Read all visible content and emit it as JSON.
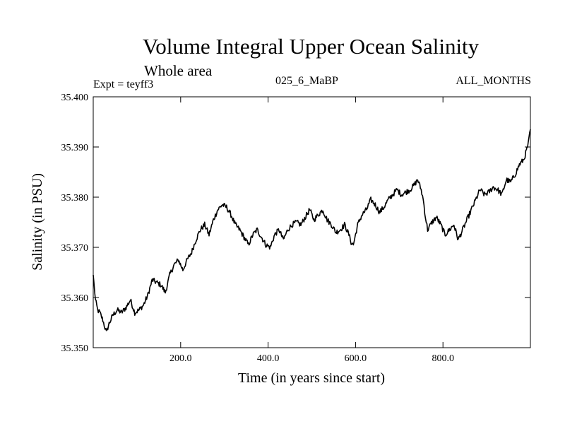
{
  "header": {
    "title": "Volume Integral Upper Ocean Salinity",
    "subtitle": "Whole area",
    "expt": "Expt = teyff3",
    "run": "025_6_MaBP",
    "months": "ALL_MONTHS"
  },
  "colors": {
    "line": "#000000",
    "background": "#ffffff"
  },
  "chart_data": {
    "type": "line",
    "title": "Volume Integral Upper Ocean Salinity",
    "xlabel": "Time (in years since start)",
    "ylabel": "Salinity (in PSU)",
    "xlim": [
      0,
      1000
    ],
    "ylim": [
      35.35,
      35.4
    ],
    "xticks": [
      200,
      400,
      600,
      800
    ],
    "xtick_labels": [
      "200.0",
      "400.0",
      "600.0",
      "800.0"
    ],
    "yticks": [
      35.35,
      35.36,
      35.37,
      35.38,
      35.39,
      35.4
    ],
    "ytick_labels": [
      "35.350",
      "35.360",
      "35.370",
      "35.380",
      "35.390",
      "35.400"
    ],
    "grid": false,
    "series": [
      {
        "name": "salinity",
        "x": [
          0,
          5,
          10,
          15,
          22,
          30,
          35,
          45,
          55,
          65,
          75,
          85,
          95,
          105,
          115,
          125,
          135,
          145,
          155,
          165,
          175,
          185,
          195,
          205,
          215,
          225,
          235,
          245,
          255,
          265,
          275,
          285,
          295,
          305,
          315,
          325,
          335,
          345,
          355,
          365,
          375,
          385,
          395,
          405,
          415,
          425,
          435,
          445,
          455,
          465,
          475,
          485,
          495,
          505,
          515,
          525,
          535,
          545,
          555,
          565,
          575,
          585,
          590,
          595,
          605,
          615,
          625,
          635,
          645,
          655,
          665,
          675,
          685,
          695,
          705,
          715,
          725,
          735,
          742,
          750,
          755,
          760,
          765,
          775,
          785,
          795,
          805,
          815,
          825,
          835,
          845,
          855,
          865,
          875,
          885,
          895,
          905,
          915,
          925,
          935,
          945,
          955,
          965,
          975,
          985,
          995,
          1000
        ],
        "values": [
          35.3645,
          35.3595,
          35.3575,
          35.357,
          35.3555,
          35.353,
          35.3545,
          35.3565,
          35.3575,
          35.357,
          35.358,
          35.3595,
          35.357,
          35.3575,
          35.3585,
          35.3605,
          35.3635,
          35.363,
          35.3625,
          35.361,
          35.3645,
          35.3665,
          35.3675,
          35.3655,
          35.3675,
          35.369,
          35.3715,
          35.3735,
          35.3745,
          35.3725,
          35.3755,
          35.3775,
          35.3785,
          35.378,
          35.3765,
          35.3745,
          35.3735,
          35.372,
          35.3705,
          35.3725,
          35.3735,
          35.372,
          35.3705,
          35.37,
          35.3725,
          35.3735,
          35.3715,
          35.3735,
          35.3745,
          35.375,
          35.3745,
          35.376,
          35.3775,
          35.3755,
          35.3765,
          35.3775,
          35.3755,
          35.3745,
          35.373,
          35.3735,
          35.3745,
          35.3725,
          35.371,
          35.3705,
          35.3745,
          35.3765,
          35.3775,
          35.3795,
          35.3785,
          35.377,
          35.378,
          35.3795,
          35.3805,
          35.3815,
          35.3805,
          35.381,
          35.3815,
          35.3825,
          35.3835,
          35.3815,
          35.3795,
          35.376,
          35.3735,
          35.375,
          35.376,
          35.3745,
          35.3725,
          35.3735,
          35.3745,
          35.3715,
          35.3735,
          35.3755,
          35.3775,
          35.3795,
          35.3815,
          35.3805,
          35.381,
          35.382,
          35.3815,
          35.3805,
          35.3835,
          35.383,
          35.3845,
          35.3865,
          35.3875,
          35.3905,
          35.3935
        ]
      }
    ]
  }
}
